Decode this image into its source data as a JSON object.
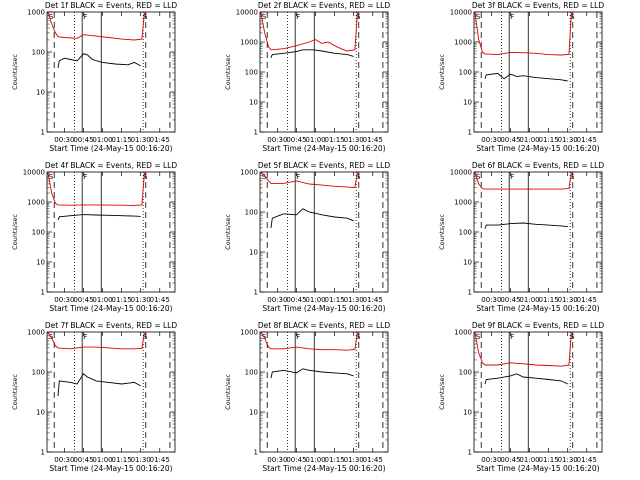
{
  "page": {
    "background": "#ffffff"
  },
  "colors": {
    "events": "#000000",
    "lld": "#dd0000",
    "axis": "#000000",
    "marker": "#000000"
  },
  "chart_data": [
    {
      "type": "line",
      "title": "Det 1f BLACK = Events, RED = LLD",
      "xlabel": "Start Time (24-May-15 00:16:20)",
      "ylabel": "Counts/sec",
      "xlim": [
        "00:16:20",
        "01:57:00"
      ],
      "ylim": [
        1,
        1000
      ],
      "y_scale": "log",
      "x_ticks": [
        "00:30",
        "00:45",
        "01:00",
        "01:15",
        "01:30",
        "01:45"
      ],
      "y_ticks": [
        "1",
        "10",
        "100",
        "1000"
      ],
      "markers": {
        "dashed": [
          "00:22",
          "01:34",
          "01:53"
        ],
        "dotted": [
          "00:38",
          "01:32"
        ],
        "solid": [
          "00:44",
          "00:59"
        ],
        "letters": [
          {
            "time": "00:17",
            "label": "S"
          },
          {
            "time": "00:44",
            "label": "F"
          },
          {
            "time": "01:31",
            "label": "S"
          }
        ]
      },
      "series": [
        {
          "role": "lld",
          "x": [
            "00:17",
            "00:20",
            "00:23",
            "00:25",
            "00:30",
            "00:40",
            "00:45",
            "00:55",
            "01:05",
            "01:15",
            "01:25",
            "01:31",
            "01:33"
          ],
          "y": [
            1000,
            500,
            300,
            240,
            230,
            220,
            270,
            250,
            230,
            210,
            200,
            210,
            1000
          ]
        },
        {
          "role": "events",
          "x": [
            "00:25",
            "00:26",
            "00:30",
            "00:35",
            "00:40",
            "00:45",
            "00:48",
            "00:52",
            "01:00",
            "01:10",
            "01:20",
            "01:25",
            "01:30"
          ],
          "y": [
            40,
            60,
            70,
            65,
            60,
            90,
            85,
            65,
            55,
            50,
            48,
            55,
            45
          ]
        }
      ]
    },
    {
      "type": "line",
      "title": "Det 2f BLACK = Events, RED = LLD",
      "xlabel": "Start Time (24-May-15 00:16:20)",
      "ylabel": "Counts/sec",
      "xlim": [
        "00:16:20",
        "01:57:00"
      ],
      "ylim": [
        1,
        10000
      ],
      "y_scale": "log",
      "x_ticks": [
        "00:30",
        "00:45",
        "01:00",
        "01:15",
        "01:30",
        "01:45"
      ],
      "y_ticks": [
        "1",
        "10",
        "100",
        "1000",
        "10000"
      ],
      "markers": {
        "dashed": [
          "00:22",
          "01:34",
          "01:53"
        ],
        "dotted": [
          "00:38",
          "01:32"
        ],
        "solid": [
          "00:44",
          "00:59"
        ],
        "letters": [
          {
            "time": "00:17",
            "label": "S"
          },
          {
            "time": "00:44",
            "label": "F"
          },
          {
            "time": "01:31",
            "label": "S"
          }
        ]
      },
      "series": [
        {
          "role": "lld",
          "x": [
            "00:17",
            "00:20",
            "00:23",
            "00:25",
            "00:35",
            "00:45",
            "00:55",
            "01:00",
            "01:05",
            "01:10",
            "01:15",
            "01:20",
            "01:25",
            "01:31",
            "01:33"
          ],
          "y": [
            10000,
            2000,
            700,
            550,
            600,
            750,
            1000,
            1200,
            900,
            1000,
            750,
            600,
            500,
            550,
            10000
          ]
        },
        {
          "role": "events",
          "x": [
            "00:25",
            "00:26",
            "00:35",
            "00:45",
            "00:50",
            "00:58",
            "01:05",
            "01:15",
            "01:25",
            "01:30"
          ],
          "y": [
            300,
            380,
            420,
            480,
            550,
            550,
            500,
            420,
            380,
            330
          ]
        }
      ]
    },
    {
      "type": "line",
      "title": "Det 3f BLACK = Events, RED = LLD",
      "xlabel": "Start Time (24-May-15 00:16:20)",
      "ylabel": "Counts/sec",
      "xlim": [
        "00:16:20",
        "01:57:00"
      ],
      "ylim": [
        1,
        10000
      ],
      "y_scale": "log",
      "x_ticks": [
        "00:30",
        "00:45",
        "01:00",
        "01:15",
        "01:30",
        "01:45"
      ],
      "y_ticks": [
        "1",
        "10",
        "100",
        "1000",
        "10000"
      ],
      "markers": {
        "dashed": [
          "00:22",
          "01:34",
          "01:53"
        ],
        "dotted": [
          "00:38",
          "01:32"
        ],
        "solid": [
          "00:44",
          "00:59"
        ],
        "letters": [
          {
            "time": "00:17",
            "label": "S"
          },
          {
            "time": "00:44",
            "label": "F"
          },
          {
            "time": "01:31",
            "label": "S"
          }
        ]
      },
      "series": [
        {
          "role": "lld",
          "x": [
            "00:17",
            "00:20",
            "00:23",
            "00:25",
            "00:35",
            "00:45",
            "00:55",
            "01:05",
            "01:15",
            "01:25",
            "01:31",
            "01:33"
          ],
          "y": [
            10000,
            1200,
            450,
            400,
            380,
            450,
            440,
            420,
            380,
            370,
            390,
            10000
          ]
        },
        {
          "role": "events",
          "x": [
            "00:25",
            "00:26",
            "00:35",
            "00:40",
            "00:45",
            "00:50",
            "00:55",
            "01:05",
            "01:15",
            "01:25",
            "01:30"
          ],
          "y": [
            60,
            80,
            90,
            60,
            85,
            70,
            75,
            65,
            60,
            55,
            50
          ]
        }
      ]
    },
    {
      "type": "line",
      "title": "Det 4f BLACK = Events, RED = LLD",
      "xlabel": "Start Time (24-May-15 00:16:20)",
      "ylabel": "Counts/sec",
      "xlim": [
        "00:16:20",
        "01:57:00"
      ],
      "ylim": [
        1,
        10000
      ],
      "y_scale": "log",
      "x_ticks": [
        "00:30",
        "00:45",
        "01:00",
        "01:15",
        "01:30",
        "01:45"
      ],
      "y_ticks": [
        "1",
        "10",
        "100",
        "1000",
        "10000"
      ],
      "markers": {
        "dashed": [
          "00:22",
          "01:34",
          "01:53"
        ],
        "dotted": [
          "00:38",
          "01:32"
        ],
        "solid": [
          "00:44",
          "00:59"
        ],
        "letters": [
          {
            "time": "00:17",
            "label": "S"
          },
          {
            "time": "00:44",
            "label": "F"
          },
          {
            "time": "01:31",
            "label": "S"
          }
        ]
      },
      "series": [
        {
          "role": "lld",
          "x": [
            "00:17",
            "00:20",
            "00:23",
            "00:25",
            "00:35",
            "00:45",
            "00:55",
            "01:05",
            "01:15",
            "01:25",
            "01:31",
            "01:33"
          ],
          "y": [
            10000,
            2000,
            900,
            800,
            780,
            800,
            800,
            790,
            780,
            770,
            800,
            10000
          ]
        },
        {
          "role": "events",
          "x": [
            "00:25",
            "00:26",
            "00:35",
            "00:45",
            "00:55",
            "01:05",
            "01:15",
            "01:25",
            "01:30"
          ],
          "y": [
            250,
            320,
            350,
            380,
            370,
            360,
            350,
            340,
            330
          ]
        }
      ]
    },
    {
      "type": "line",
      "title": "Det 5f BLACK = Events, RED = LLD",
      "xlabel": "Start Time (24-May-15 00:16:20)",
      "ylabel": "Counts/sec",
      "xlim": [
        "00:16:20",
        "01:57:00"
      ],
      "ylim": [
        1,
        1000
      ],
      "y_scale": "log",
      "x_ticks": [
        "00:30",
        "00:45",
        "01:00",
        "01:15",
        "01:30",
        "01:45"
      ],
      "y_ticks": [
        "1",
        "10",
        "100",
        "1000"
      ],
      "markers": {
        "dashed": [
          "00:22",
          "01:34",
          "01:53"
        ],
        "dotted": [
          "00:38",
          "01:32"
        ],
        "solid": [
          "00:44",
          "00:59"
        ],
        "letters": [
          {
            "time": "00:17",
            "label": "S"
          },
          {
            "time": "00:44",
            "label": "F"
          },
          {
            "time": "01:31",
            "label": "S"
          }
        ]
      },
      "series": [
        {
          "role": "lld",
          "x": [
            "00:17",
            "00:20",
            "00:23",
            "00:25",
            "00:35",
            "00:45",
            "00:55",
            "01:05",
            "01:15",
            "01:25",
            "01:31",
            "01:33"
          ],
          "y": [
            1000,
            800,
            600,
            520,
            520,
            600,
            500,
            470,
            440,
            420,
            410,
            1000
          ]
        },
        {
          "role": "events",
          "x": [
            "00:25",
            "00:26",
            "00:35",
            "00:45",
            "00:50",
            "00:55",
            "01:05",
            "01:15",
            "01:25",
            "01:30"
          ],
          "y": [
            40,
            70,
            90,
            85,
            120,
            100,
            85,
            75,
            70,
            60
          ]
        }
      ]
    },
    {
      "type": "line",
      "title": "Det 6f BLACK = Events, RED = LLD",
      "xlabel": "Start Time (24-May-15 00:16:20)",
      "ylabel": "Counts/sec",
      "xlim": [
        "00:16:20",
        "01:57:00"
      ],
      "ylim": [
        1,
        10000
      ],
      "y_scale": "log",
      "x_ticks": [
        "00:30",
        "00:45",
        "01:00",
        "01:15",
        "01:30",
        "01:45"
      ],
      "y_ticks": [
        "1",
        "10",
        "100",
        "1000",
        "10000"
      ],
      "markers": {
        "dashed": [
          "00:22",
          "01:34",
          "01:53"
        ],
        "dotted": [
          "00:38",
          "01:32"
        ],
        "solid": [
          "00:44",
          "00:59"
        ],
        "letters": [
          {
            "time": "00:17",
            "label": "S"
          },
          {
            "time": "00:44",
            "label": "F"
          },
          {
            "time": "01:31",
            "label": "S"
          }
        ]
      },
      "series": [
        {
          "role": "lld",
          "x": [
            "00:17",
            "00:20",
            "00:23",
            "00:25",
            "00:35",
            "00:45",
            "00:55",
            "01:05",
            "01:15",
            "01:25",
            "01:31",
            "01:33"
          ],
          "y": [
            10000,
            4000,
            2800,
            2700,
            2700,
            2700,
            2700,
            2700,
            2700,
            2700,
            2800,
            10000
          ]
        },
        {
          "role": "events",
          "x": [
            "00:25",
            "00:26",
            "00:35",
            "00:45",
            "00:55",
            "01:05",
            "01:15",
            "01:25",
            "01:30"
          ],
          "y": [
            130,
            170,
            170,
            190,
            200,
            180,
            170,
            160,
            150
          ]
        }
      ]
    },
    {
      "type": "line",
      "title": "Det 7f BLACK = Events, RED = LLD",
      "xlabel": "Start Time (24-May-15 00:16:20)",
      "ylabel": "Counts/sec",
      "xlim": [
        "00:16:20",
        "01:57:00"
      ],
      "ylim": [
        1,
        1000
      ],
      "y_scale": "log",
      "x_ticks": [
        "00:30",
        "00:45",
        "01:00",
        "01:15",
        "01:30",
        "01:45"
      ],
      "y_ticks": [
        "1",
        "10",
        "100",
        "1000"
      ],
      "markers": {
        "dashed": [
          "00:22",
          "01:34",
          "01:53"
        ],
        "dotted": [
          "00:38",
          "01:32"
        ],
        "solid": [
          "00:44",
          "00:59"
        ],
        "letters": [
          {
            "time": "00:17",
            "label": "S"
          },
          {
            "time": "00:44",
            "label": "F"
          },
          {
            "time": "01:31",
            "label": "S"
          }
        ]
      },
      "series": [
        {
          "role": "lld",
          "x": [
            "00:17",
            "00:20",
            "00:23",
            "00:25",
            "00:35",
            "00:45",
            "00:55",
            "01:05",
            "01:15",
            "01:25",
            "01:31",
            "01:33"
          ],
          "y": [
            1000,
            700,
            450,
            400,
            380,
            420,
            420,
            400,
            380,
            380,
            390,
            1000
          ]
        },
        {
          "role": "events",
          "x": [
            "00:25",
            "00:26",
            "00:35",
            "00:40",
            "00:45",
            "00:48",
            "00:55",
            "01:05",
            "01:15",
            "01:25",
            "01:30"
          ],
          "y": [
            25,
            60,
            55,
            50,
            90,
            75,
            60,
            55,
            50,
            55,
            45
          ]
        }
      ]
    },
    {
      "type": "line",
      "title": "Det 8f BLACK = Events, RED = LLD",
      "xlabel": "Start Time (24-May-15 00:16:20)",
      "ylabel": "Counts/sec",
      "xlim": [
        "00:16:20",
        "01:57:00"
      ],
      "ylim": [
        1,
        1000
      ],
      "y_scale": "log",
      "x_ticks": [
        "00:30",
        "00:45",
        "01:00",
        "01:15",
        "01:30",
        "01:45"
      ],
      "y_ticks": [
        "1",
        "10",
        "100",
        "1000"
      ],
      "markers": {
        "dashed": [
          "00:22",
          "01:34",
          "01:53"
        ],
        "dotted": [
          "00:38",
          "01:32"
        ],
        "solid": [
          "00:44",
          "00:59"
        ],
        "letters": [
          {
            "time": "00:17",
            "label": "S"
          },
          {
            "time": "00:44",
            "label": "F"
          },
          {
            "time": "01:31",
            "label": "S"
          }
        ]
      },
      "series": [
        {
          "role": "lld",
          "x": [
            "00:17",
            "00:20",
            "00:23",
            "00:25",
            "00:35",
            "00:45",
            "00:55",
            "01:05",
            "01:15",
            "01:25",
            "01:31",
            "01:33"
          ],
          "y": [
            1000,
            700,
            420,
            380,
            380,
            420,
            380,
            360,
            360,
            350,
            370,
            1000
          ]
        },
        {
          "role": "events",
          "x": [
            "00:25",
            "00:26",
            "00:35",
            "00:45",
            "00:50",
            "00:55",
            "01:05",
            "01:15",
            "01:25",
            "01:30"
          ],
          "y": [
            70,
            100,
            110,
            95,
            120,
            110,
            100,
            95,
            90,
            80
          ]
        }
      ]
    },
    {
      "type": "line",
      "title": "Det 9f BLACK = Events, RED = LLD",
      "xlabel": "Start Time (24-May-15 00:16:20)",
      "ylabel": "Counts/sec",
      "xlim": [
        "00:16:20",
        "01:57:00"
      ],
      "ylim": [
        1,
        1000
      ],
      "y_scale": "log",
      "x_ticks": [
        "00:30",
        "00:45",
        "01:00",
        "01:15",
        "01:30",
        "01:45"
      ],
      "y_ticks": [
        "1",
        "10",
        "100",
        "1000"
      ],
      "markers": {
        "dashed": [
          "00:22",
          "01:34",
          "01:53"
        ],
        "dotted": [
          "00:38",
          "01:32"
        ],
        "solid": [
          "00:44",
          "00:59"
        ],
        "letters": [
          {
            "time": "00:17",
            "label": "S"
          },
          {
            "time": "00:44",
            "label": "F"
          },
          {
            "time": "01:31",
            "label": "S"
          }
        ]
      },
      "series": [
        {
          "role": "lld",
          "x": [
            "00:17",
            "00:20",
            "00:23",
            "00:25",
            "00:35",
            "00:45",
            "00:55",
            "01:05",
            "01:15",
            "01:25",
            "01:31",
            "01:33"
          ],
          "y": [
            1000,
            300,
            170,
            150,
            150,
            170,
            160,
            150,
            145,
            140,
            150,
            1000
          ]
        },
        {
          "role": "events",
          "x": [
            "00:25",
            "00:26",
            "00:35",
            "00:45",
            "00:50",
            "00:55",
            "01:05",
            "01:15",
            "01:25",
            "01:30"
          ],
          "y": [
            50,
            65,
            70,
            80,
            90,
            75,
            70,
            65,
            60,
            50
          ]
        }
      ]
    }
  ]
}
